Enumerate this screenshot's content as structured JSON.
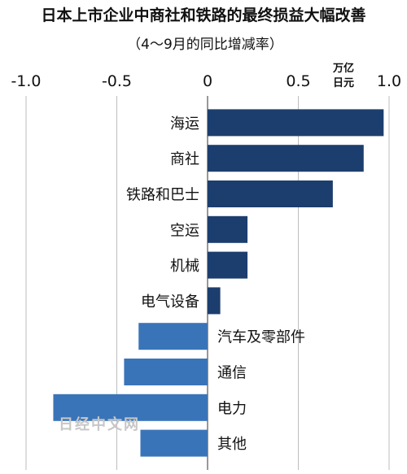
{
  "chart_data": {
    "type": "bar",
    "orientation": "horizontal",
    "title": "日本上市企业中商社和铁路的最终损益大幅改善",
    "subtitle": "（4～9月的同比增减率）",
    "unit_line1": "万亿",
    "unit_line2": "日元",
    "xlim": [
      -1.0,
      1.0
    ],
    "xticks": [
      "-1.0",
      "-0.5",
      "0",
      "0.5",
      "1.0"
    ],
    "xtick_values": [
      -1.0,
      -0.5,
      0,
      0.5,
      1.0
    ],
    "grid": true,
    "categories": [
      "海运",
      "商社",
      "铁路和巴士",
      "空运",
      "机械",
      "电气设备",
      "汽车及零部件",
      "通信",
      "电力",
      "其他"
    ],
    "values": [
      0.97,
      0.86,
      0.69,
      0.22,
      0.22,
      0.07,
      -0.38,
      -0.46,
      -0.85,
      -0.37
    ],
    "colors": {
      "positive": "#1c3e6e",
      "negative": "#3a74b8"
    }
  },
  "watermark": "日经中文网"
}
